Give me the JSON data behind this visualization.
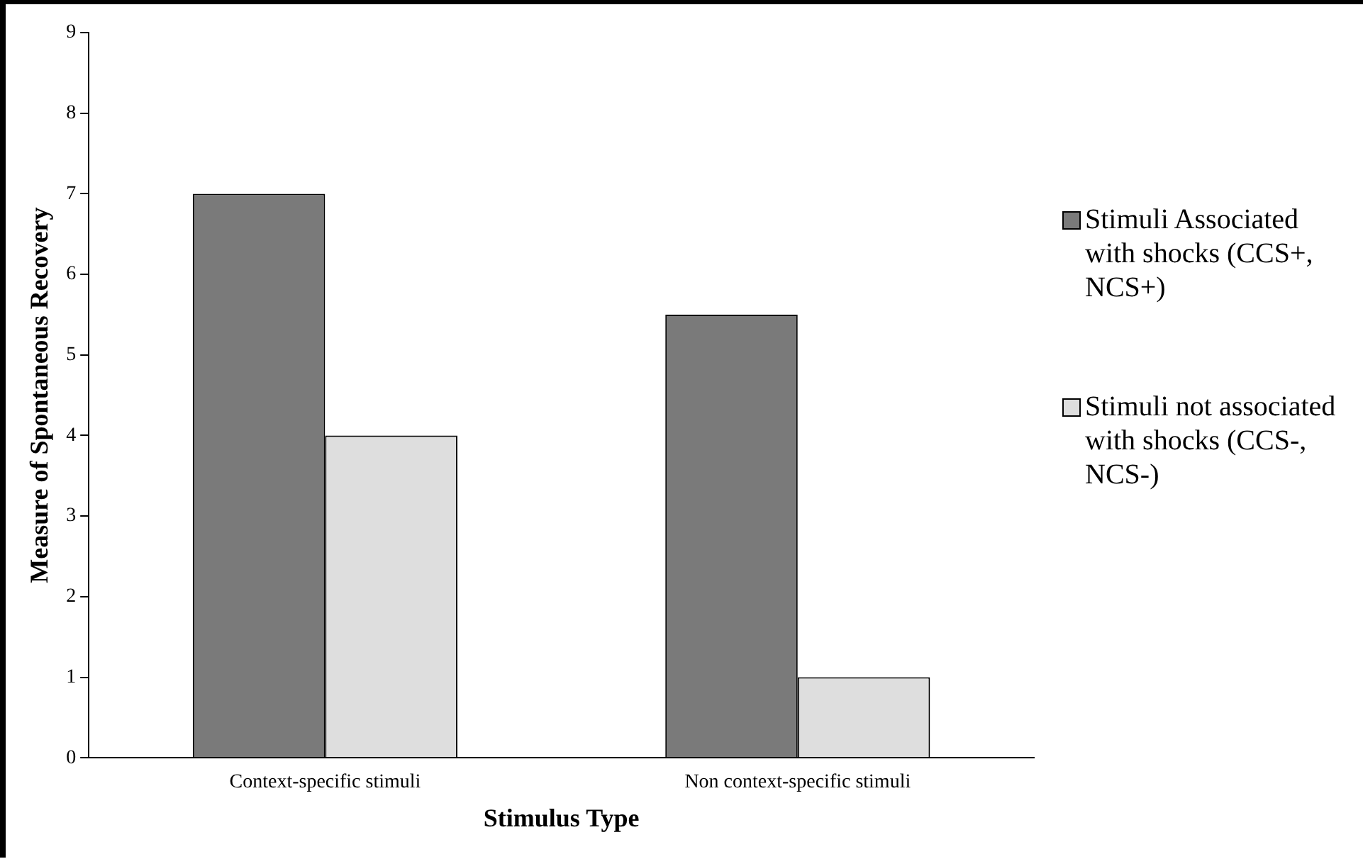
{
  "chart_data": {
    "type": "bar",
    "xlabel": "Stimulus Type",
    "ylabel": "Measure of Spontaneous Recovery",
    "categories": [
      "Context-specific stimuli",
      "Non context-specific stimuli"
    ],
    "series": [
      {
        "name": "Stimuli Associated with shocks (CCS+, NCS+)",
        "color": "#7a7a7a",
        "values": [
          7,
          5.5
        ]
      },
      {
        "name": "Stimuli not associated with shocks (CCS-, NCS-)",
        "color": "#dedede",
        "values": [
          4,
          1
        ]
      }
    ],
    "ylim": [
      0,
      9
    ],
    "yticks": [
      0,
      1,
      2,
      3,
      4,
      5,
      6,
      7,
      8,
      9
    ],
    "grid": false,
    "legend": "right"
  }
}
